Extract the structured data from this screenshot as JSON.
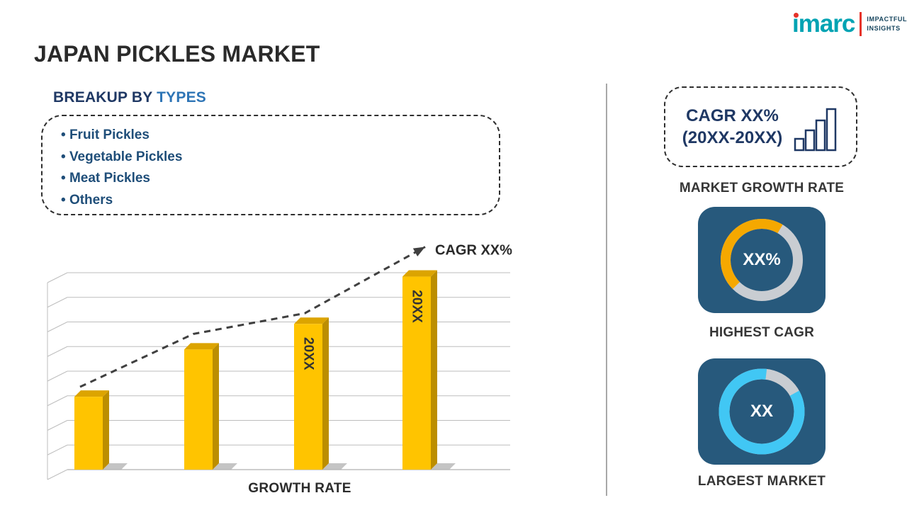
{
  "page": {
    "title": "JAPAN PICKLES MARKET"
  },
  "logo": {
    "brand": "imarc",
    "tagline_line1": "IMPACTFUL",
    "tagline_line2": "INSIGHTS",
    "teal": "#00A3B3",
    "red": "#E6332A",
    "navy": "#16455E"
  },
  "breakup": {
    "heading_prefix": "BREAKUP BY",
    "heading_highlight": "TYPES",
    "items": [
      "Fruit Pickles",
      "Vegetable Pickles",
      "Meat Pickles",
      "Others"
    ]
  },
  "right_panel": {
    "cagr_box": {
      "line1": "CAGR XX%",
      "line2": "(20XX-20XX)"
    },
    "market_growth_label": "MARKET GROWTH RATE",
    "highest_cagr_label": "HIGHEST CAGR",
    "largest_market_label": "LARGEST MARKET"
  },
  "colors": {
    "bar_front": "#FFC400",
    "bar_side": "#BC8E00",
    "bar_top": "#DCA400",
    "card_navy": "#27597C",
    "donut_track": "#C9CDD2",
    "donut_orange": "#F5A800",
    "donut_cyan": "#41C7F4",
    "accent_navy": "#1F3864",
    "accent_blue": "#2E75B6",
    "trend_gray": "#404040"
  },
  "chart_data": [
    {
      "type": "bar",
      "title": "",
      "xlabel": "GROWTH RATE",
      "ylabel": "",
      "ylim": [
        0,
        100
      ],
      "grid": true,
      "style": "3d-gold-bars",
      "categories": [
        "",
        "",
        "20XX",
        "20XX"
      ],
      "values": [
        37,
        61,
        74,
        98
      ],
      "bar_labels": [
        "",
        "",
        "20XX",
        "20XX"
      ],
      "trend": {
        "type": "dashed-arrow",
        "label": "CAGR XX%"
      }
    },
    {
      "type": "pie",
      "subtype": "donut",
      "caption": "HIGHEST CAGR",
      "center_label": "XX%",
      "start_angle": 135,
      "slices": [
        {
          "label": "highlight",
          "value": 46,
          "color": "#F5A800"
        },
        {
          "label": "remainder",
          "value": 54,
          "color": "#C9CDD2"
        }
      ]
    },
    {
      "type": "pie",
      "subtype": "donut",
      "caption": "LARGEST MARKET",
      "center_label": "XX",
      "start_angle": 331,
      "slices": [
        {
          "label": "highlight",
          "value": 85,
          "color": "#41C7F4"
        },
        {
          "label": "remainder",
          "value": 15,
          "color": "#C9CDD2"
        }
      ]
    }
  ]
}
